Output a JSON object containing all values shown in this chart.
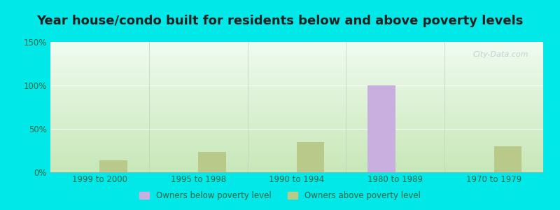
{
  "title": "Year house/condo built for residents below and above poverty levels",
  "categories": [
    "1999 to 2000",
    "1995 to 1998",
    "1990 to 1994",
    "1980 to 1989",
    "1970 to 1979"
  ],
  "below_poverty": [
    0,
    0,
    0,
    100,
    0
  ],
  "above_poverty": [
    14,
    23,
    35,
    0,
    30
  ],
  "below_color": "#c9aee0",
  "above_color": "#b8c98a",
  "ylim": [
    0,
    150
  ],
  "yticks": [
    0,
    50,
    100,
    150
  ],
  "ytick_labels": [
    "0%",
    "50%",
    "100%",
    "150%"
  ],
  "bar_width": 0.28,
  "background_outer": "#00e8e8",
  "background_inner_top": "#f0fbf0",
  "background_inner_bottom": "#c8e8b8",
  "title_fontsize": 13,
  "legend_below_label": "Owners below poverty level",
  "legend_above_label": "Owners above poverty level",
  "watermark": "City-Data.com"
}
